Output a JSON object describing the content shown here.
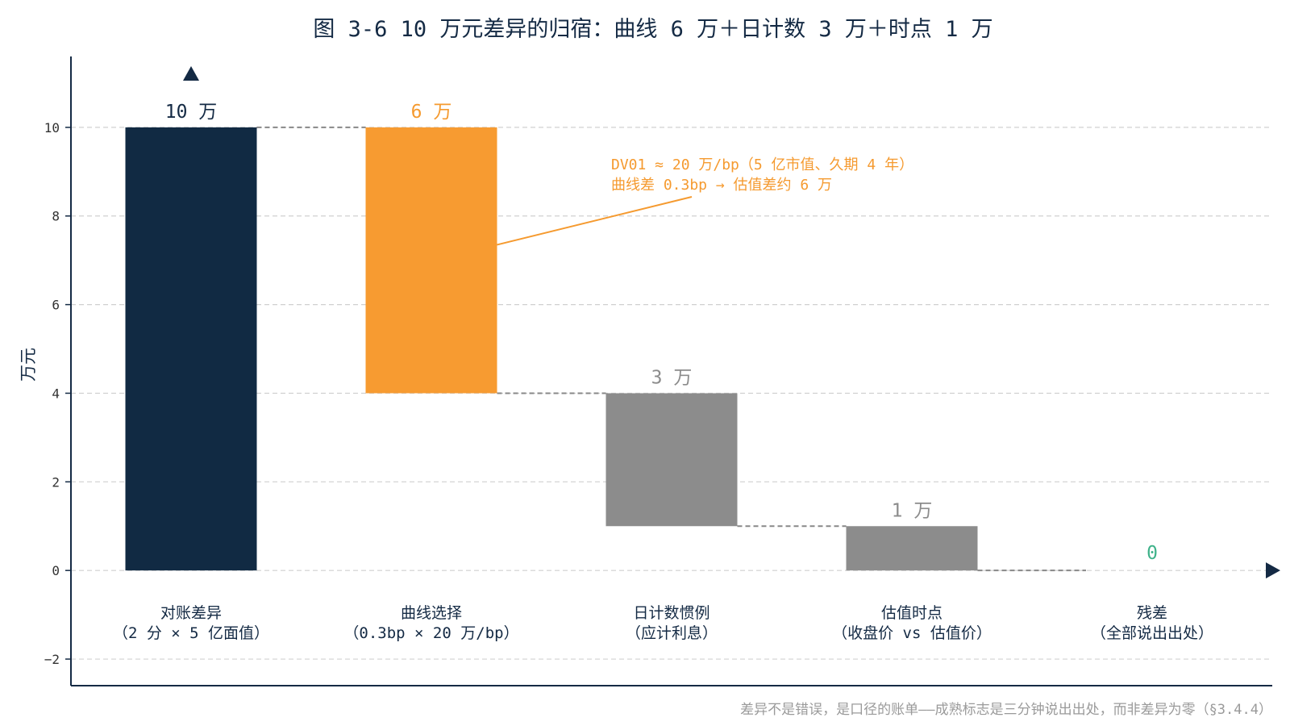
{
  "chart_data": {
    "type": "waterfall",
    "title": "图 3-6 10 万元差异的归宿：曲线 6 万＋日计数 3 万＋时点 1 万",
    "ylabel": "万元",
    "ylim": [
      -2.6,
      11.6
    ],
    "yticks": [
      -2,
      0,
      2,
      4,
      6,
      8,
      10
    ],
    "grid": true,
    "categories": [
      [
        "对账差异",
        "（2 分 × 5 亿面值）"
      ],
      [
        "曲线选择",
        "（0.3bp × 20 万/bp）"
      ],
      [
        "日计数惯例",
        "（应计利息）"
      ],
      [
        "估值时点",
        "（收盘价 vs 估值价）"
      ],
      [
        "残差",
        "（全部说出出处）"
      ]
    ],
    "bars": [
      {
        "bottom": 0,
        "top": 10,
        "label": "10 万",
        "color": "#112a43",
        "label_color": "#142a44"
      },
      {
        "bottom": 4,
        "top": 10,
        "label": "6 万",
        "color": "#f79b31",
        "label_color": "#f59a2f"
      },
      {
        "bottom": 1,
        "top": 4,
        "label": "3 万",
        "color": "#8c8c8c",
        "label_color": "#8c8c8c"
      },
      {
        "bottom": 0,
        "top": 1,
        "label": "1 万",
        "color": "#8c8c8c",
        "label_color": "#8c8c8c"
      },
      {
        "bottom": 0,
        "top": 0,
        "label": "0",
        "color": "#3fb28a",
        "label_color": "#3fb28a"
      }
    ],
    "connectors": [
      10,
      4,
      1,
      0
    ],
    "annotation": {
      "lines": [
        "DV01 ≈ 20 万/bp（5 亿市值、久期 4 年）",
        "曲线差 0.3bp → 估值差约 6 万"
      ],
      "bar_index": 1,
      "color": "#f59a2f"
    },
    "footnote": "差异不是错误，是口径的账单——成熟标志是三分钟说出出处，而非差异为零（§3.4.4）"
  },
  "colors": {
    "axis": "#142a44",
    "grid": "#d0d0d0",
    "connector": "#888888"
  }
}
